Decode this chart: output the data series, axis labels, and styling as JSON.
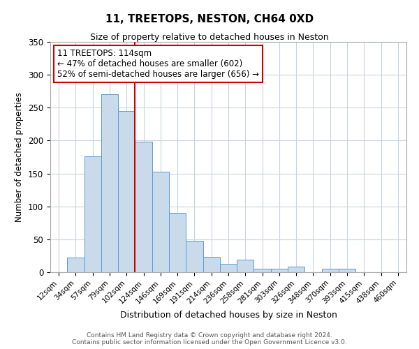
{
  "title": "11, TREETOPS, NESTON, CH64 0XD",
  "subtitle": "Size of property relative to detached houses in Neston",
  "xlabel": "Distribution of detached houses by size in Neston",
  "ylabel": "Number of detached properties",
  "bar_labels": [
    "12sqm",
    "34sqm",
    "57sqm",
    "79sqm",
    "102sqm",
    "124sqm",
    "146sqm",
    "169sqm",
    "191sqm",
    "214sqm",
    "236sqm",
    "258sqm",
    "281sqm",
    "303sqm",
    "326sqm",
    "348sqm",
    "370sqm",
    "393sqm",
    "415sqm",
    "438sqm",
    "460sqm"
  ],
  "bar_values": [
    0,
    22,
    176,
    270,
    245,
    198,
    153,
    90,
    48,
    23,
    13,
    19,
    5,
    5,
    8,
    0,
    5,
    5,
    0,
    0,
    0
  ],
  "bar_color": "#c9daea",
  "bar_edge_color": "#5b9bd5",
  "vline_index": 5,
  "vline_color": "#cc0000",
  "ylim": [
    0,
    350
  ],
  "yticks": [
    0,
    50,
    100,
    150,
    200,
    250,
    300,
    350
  ],
  "annotation_text": "11 TREETOPS: 114sqm\n← 47% of detached houses are smaller (602)\n52% of semi-detached houses are larger (656) →",
  "annotation_box_color": "#ffffff",
  "annotation_box_edge": "#cc0000",
  "footer_line1": "Contains HM Land Registry data © Crown copyright and database right 2024.",
  "footer_line2": "Contains public sector information licensed under the Open Government Licence v3.0.",
  "bg_color": "#ffffff",
  "grid_color": "#c8d4e0",
  "title_fontsize": 11,
  "subtitle_fontsize": 9
}
